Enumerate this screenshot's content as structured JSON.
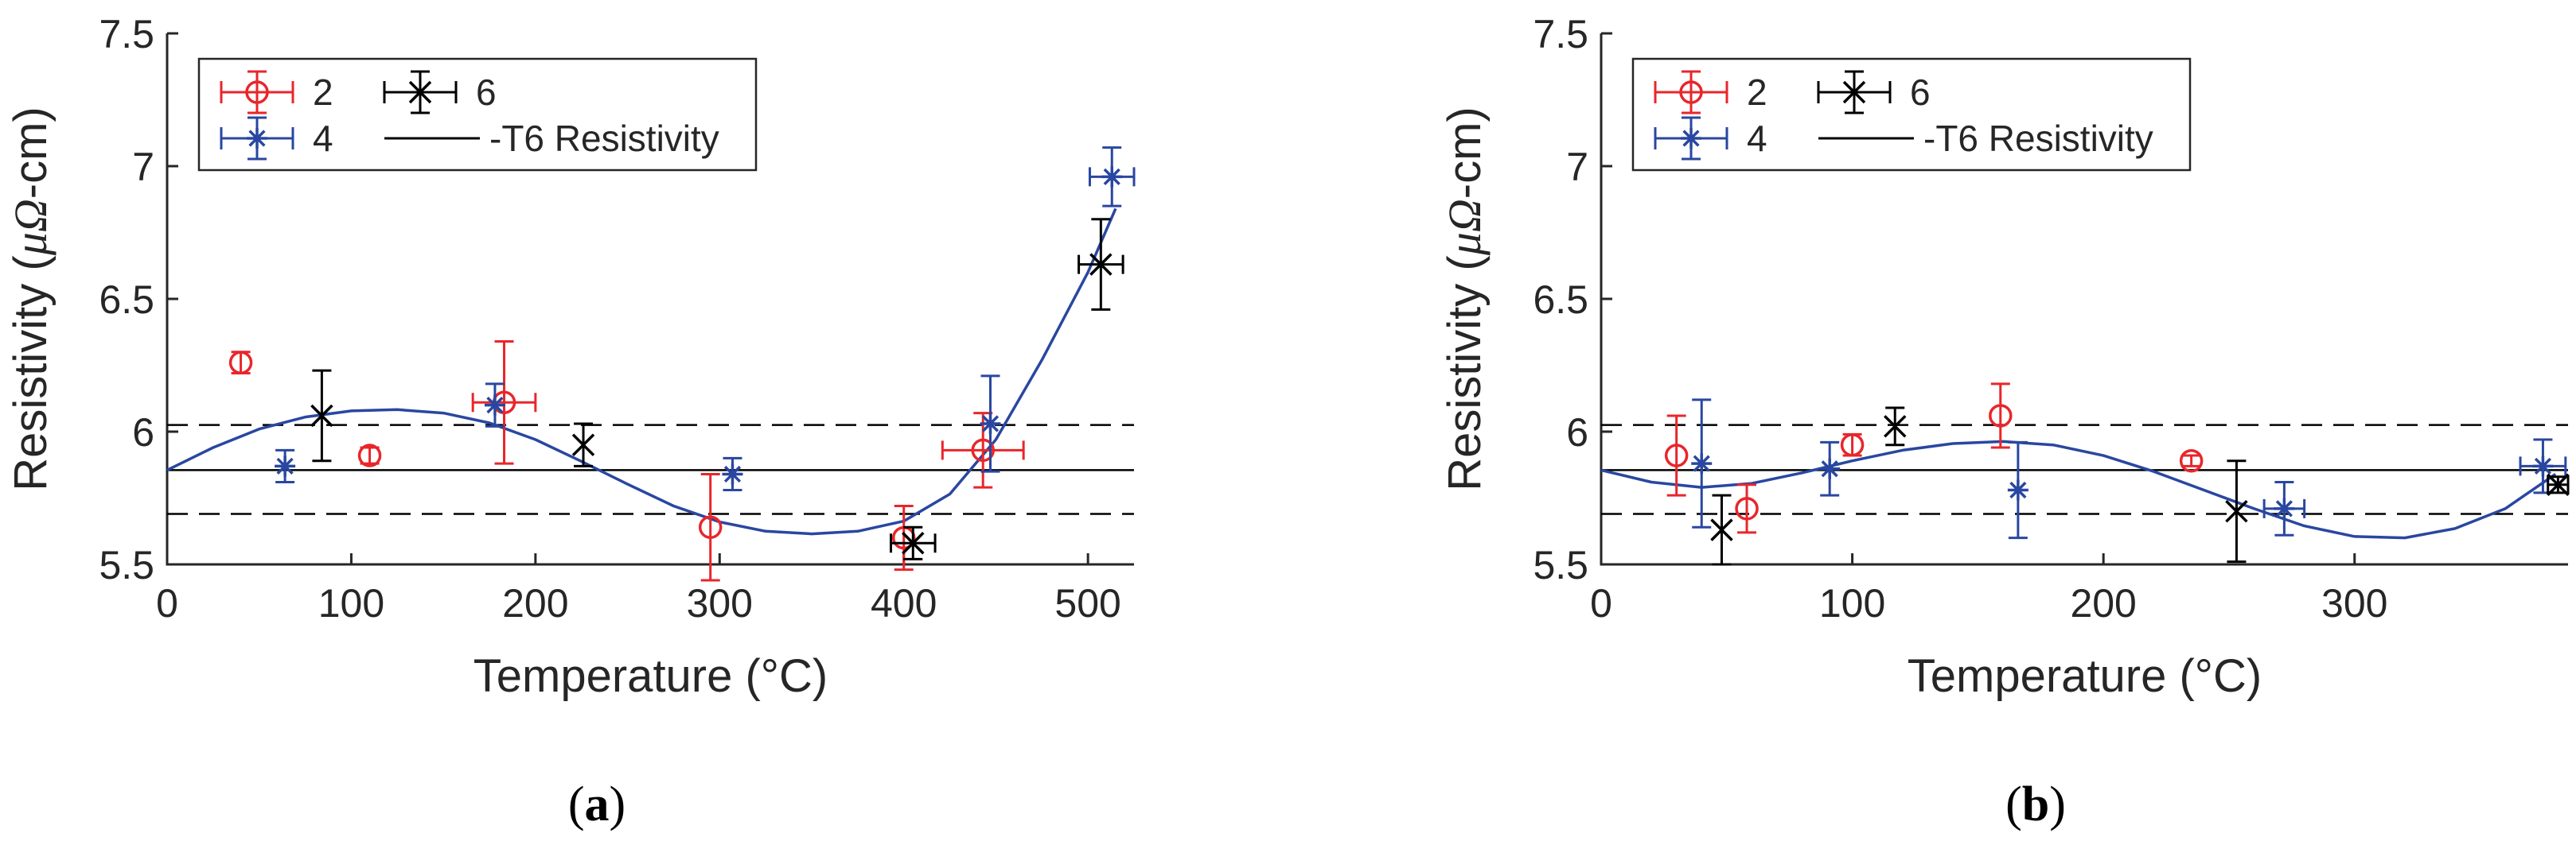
{
  "colors": {
    "series_2": "#e8262b",
    "series_4": "#2947a1",
    "series_6": "#000000",
    "axis": "#262626"
  },
  "chart_data": [
    {
      "type": "scatter",
      "panel_label_letter": "a",
      "xlabel": "Temperature (°C)",
      "ylabel_prefix": "Resistivity (",
      "ylabel_symbol": "μΩ",
      "ylabel_suffix": "-cm)",
      "xlim": [
        0,
        525
      ],
      "ylim": [
        5.5,
        7.5
      ],
      "xticks": [
        0,
        100,
        200,
        300,
        400,
        500
      ],
      "yticks": [
        5.5,
        6,
        6.5,
        7,
        7.5
      ],
      "ytick_labels": [
        "5.5",
        "6",
        "6.5",
        "7",
        "7.5"
      ],
      "legend": {
        "placement": "top-left",
        "entries": [
          "2",
          "6",
          "4",
          "-T6 Resistivity"
        ]
      },
      "reference_line": {
        "name": "-T6 Resistivity",
        "y": 5.855,
        "band": [
          5.69,
          6.025
        ]
      },
      "series": [
        {
          "name": "2",
          "marker": "circle",
          "points": [
            {
              "x": 40,
              "y": 6.26,
              "xerr": 0,
              "yerr": 0.04
            },
            {
              "x": 110,
              "y": 5.91,
              "xerr": 0,
              "yerr": 0.03
            },
            {
              "x": 183,
              "y": 6.11,
              "xerr": 17,
              "yerr": 0.23
            },
            {
              "x": 295,
              "y": 5.64,
              "xerr": 0,
              "yerr": 0.2
            },
            {
              "x": 400,
              "y": 5.6,
              "xerr": 0,
              "yerr": 0.12
            },
            {
              "x": 443,
              "y": 5.93,
              "xerr": 22,
              "yerr": 0.14
            }
          ]
        },
        {
          "name": "4",
          "marker": "star",
          "points": [
            {
              "x": 64,
              "y": 5.87,
              "xerr": 0,
              "yerr": 0.06
            },
            {
              "x": 178,
              "y": 6.1,
              "xerr": 0,
              "yerr": 0.08
            },
            {
              "x": 307,
              "y": 5.84,
              "xerr": 0,
              "yerr": 0.06
            },
            {
              "x": 447,
              "y": 6.03,
              "xerr": 0,
              "yerr": 0.18
            },
            {
              "x": 513,
              "y": 6.96,
              "xerr": 12,
              "yerr": 0.11
            }
          ]
        },
        {
          "name": "6",
          "marker": "cross",
          "points": [
            {
              "x": 84,
              "y": 6.06,
              "xerr": 0,
              "yerr": 0.17
            },
            {
              "x": 226,
              "y": 5.95,
              "xerr": 0,
              "yerr": 0.08
            },
            {
              "x": 405,
              "y": 5.58,
              "xerr": 12,
              "yerr": 0.06
            },
            {
              "x": 507,
              "y": 6.63,
              "xerr": 12,
              "yerr": 0.17
            }
          ]
        }
      ],
      "fit_curve": {
        "name": "fit",
        "color": "#2947a1",
        "x": [
          0,
          25,
          50,
          75,
          100,
          125,
          150,
          175,
          200,
          225,
          250,
          275,
          300,
          325,
          350,
          375,
          400,
          425,
          450,
          475,
          500,
          515
        ],
        "y": [
          5.855,
          5.94,
          6.01,
          6.055,
          6.078,
          6.083,
          6.07,
          6.033,
          5.97,
          5.888,
          5.802,
          5.72,
          5.66,
          5.625,
          5.615,
          5.625,
          5.663,
          5.765,
          5.97,
          6.27,
          6.6,
          6.84
        ]
      }
    },
    {
      "type": "scatter",
      "panel_label_letter": "b",
      "xlabel": "Temperature (°C)",
      "ylabel_prefix": "Resistivity (",
      "ylabel_symbol": "μΩ",
      "ylabel_suffix": "-cm)",
      "xlim": [
        0,
        385
      ],
      "ylim": [
        5.5,
        7.5
      ],
      "xticks": [
        0,
        100,
        200,
        300
      ],
      "yticks": [
        5.5,
        6,
        6.5,
        7,
        7.5
      ],
      "ytick_labels": [
        "5.5",
        "6",
        "6.5",
        "7",
        "7.5"
      ],
      "legend": {
        "placement": "top-left",
        "entries": [
          "2",
          "6",
          "4",
          "-T6 Resistivity"
        ]
      },
      "reference_line": {
        "name": "-T6 Resistivity",
        "y": 5.855,
        "band": [
          5.69,
          6.025
        ]
      },
      "series": [
        {
          "name": "2",
          "marker": "circle",
          "points": [
            {
              "x": 30,
              "y": 5.91,
              "xerr": 0,
              "yerr": 0.15
            },
            {
              "x": 58,
              "y": 5.71,
              "xerr": 0,
              "yerr": 0.09
            },
            {
              "x": 100,
              "y": 5.95,
              "xerr": 0,
              "yerr": 0.04
            },
            {
              "x": 159,
              "y": 6.06,
              "xerr": 0,
              "yerr": 0.12
            },
            {
              "x": 235,
              "y": 5.89,
              "xerr": 0,
              "yerr": 0.02
            }
          ]
        },
        {
          "name": "4",
          "marker": "star",
          "points": [
            {
              "x": 40,
              "y": 5.88,
              "xerr": 0,
              "yerr": 0.24
            },
            {
              "x": 91,
              "y": 5.86,
              "xerr": 0,
              "yerr": 0.1
            },
            {
              "x": 166,
              "y": 5.78,
              "xerr": 0,
              "yerr": 0.18
            },
            {
              "x": 272,
              "y": 5.71,
              "xerr": 8,
              "yerr": 0.1
            },
            {
              "x": 375,
              "y": 5.87,
              "xerr": 9,
              "yerr": 0.1
            }
          ]
        },
        {
          "name": "6",
          "marker": "cross",
          "points": [
            {
              "x": 48,
              "y": 5.63,
              "xerr": 0,
              "yerr": 0.13
            },
            {
              "x": 117,
              "y": 6.02,
              "xerr": 0,
              "yerr": 0.07
            },
            {
              "x": 253,
              "y": 5.7,
              "xerr": 0,
              "yerr": 0.19
            },
            {
              "x": 381,
              "y": 5.8,
              "xerr": 4,
              "yerr": 0.03
            }
          ]
        }
      ],
      "fit_curve": {
        "name": "fit",
        "color": "#2947a1",
        "x": [
          0,
          20,
          40,
          60,
          80,
          100,
          120,
          140,
          160,
          180,
          200,
          220,
          240,
          260,
          280,
          300,
          320,
          340,
          360,
          380
        ],
        "y": [
          5.855,
          5.81,
          5.79,
          5.805,
          5.845,
          5.89,
          5.93,
          5.955,
          5.963,
          5.95,
          5.91,
          5.85,
          5.78,
          5.71,
          5.645,
          5.605,
          5.6,
          5.635,
          5.71,
          5.84
        ]
      }
    }
  ]
}
